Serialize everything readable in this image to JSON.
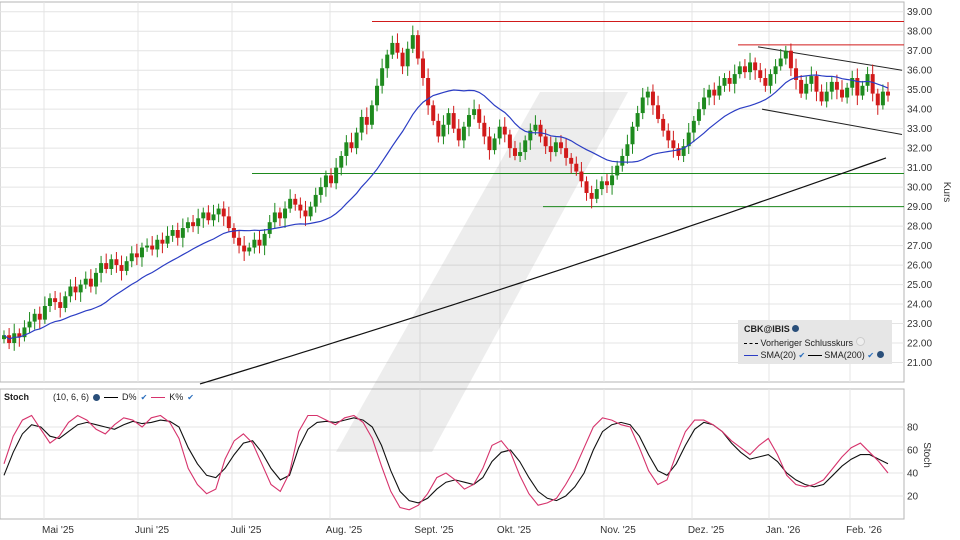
{
  "chart_data": [
    {
      "type": "candlestick",
      "symbol": "CBK@IBIS",
      "ylabel": "Kurs",
      "ylim": [
        20.0,
        39.5
      ],
      "y_ticks": [
        "21.00",
        "22.00",
        "23.00",
        "24.00",
        "25.00",
        "26.00",
        "27.00",
        "28.00",
        "29.00",
        "30.00",
        "31.00",
        "32.00",
        "33.00",
        "34.00",
        "35.00",
        "36.00",
        "37.00",
        "38.00",
        "39.00"
      ],
      "x_ticks": [
        "Mai '25",
        "Juni '25",
        "Juli '25",
        "Aug. '25",
        "Sept. '25",
        "Okt. '25",
        "Nov. '25",
        "Dez. '25",
        "Jan. '26",
        "Feb. '26"
      ],
      "legend": {
        "title": "CBK@IBIS",
        "prev_close": "Vorheriger Schlusskurs",
        "sma20": "SMA(20)",
        "sma200": "SMA(200)"
      },
      "close": [
        22.4,
        22.0,
        22.5,
        22.3,
        22.8,
        23.1,
        23.5,
        23.2,
        23.9,
        24.3,
        24.1,
        23.8,
        24.4,
        24.9,
        24.6,
        25.0,
        25.3,
        24.9,
        25.6,
        26.1,
        25.8,
        26.3,
        26.0,
        25.7,
        26.2,
        26.6,
        26.4,
        26.9,
        27.0,
        26.8,
        27.3,
        27.1,
        27.5,
        27.8,
        27.4,
        27.9,
        28.2,
        28.0,
        28.4,
        28.7,
        28.3,
        28.6,
        28.9,
        28.5,
        27.9,
        27.4,
        27.0,
        26.7,
        26.9,
        27.3,
        27.0,
        27.6,
        28.2,
        28.7,
        28.4,
        28.9,
        29.4,
        29.1,
        28.8,
        28.5,
        29.0,
        29.6,
        30.0,
        30.6,
        30.2,
        31.0,
        31.6,
        32.3,
        32.0,
        32.8,
        33.6,
        33.2,
        34.2,
        35.2,
        36.1,
        36.8,
        37.4,
        36.9,
        36.2,
        37.1,
        37.8,
        36.6,
        35.6,
        34.2,
        33.4,
        32.6,
        33.2,
        33.8,
        33.0,
        32.4,
        33.1,
        33.7,
        34.0,
        33.3,
        32.6,
        31.9,
        32.5,
        33.1,
        32.7,
        32.0,
        31.6,
        31.8,
        32.4,
        32.9,
        33.2,
        32.6,
        32.1,
        31.8,
        32.3,
        32.0,
        31.5,
        31.2,
        30.8,
        30.3,
        29.7,
        29.4,
        29.9,
        30.3,
        30.1,
        30.6,
        31.1,
        31.6,
        32.2,
        33.1,
        33.8,
        34.6,
        34.9,
        34.2,
        33.5,
        32.9,
        32.4,
        32.0,
        31.6,
        32.1,
        32.8,
        33.4,
        34.0,
        34.6,
        35.0,
        34.7,
        35.2,
        35.6,
        35.3,
        35.8,
        36.2,
        35.9,
        36.4,
        36.0,
        35.6,
        35.2,
        35.8,
        36.2,
        36.6,
        37.0,
        36.1,
        35.5,
        34.8,
        35.3,
        35.7,
        34.9,
        34.4,
        34.9,
        35.4,
        35.0,
        34.6,
        35.1,
        35.6,
        34.7,
        35.2,
        35.8,
        34.8,
        34.2,
        34.9,
        34.7
      ],
      "sma20_endpoints": [
        22.1,
        35.2
      ],
      "sma200_range": [
        19.9,
        31.5
      ],
      "levels": {
        "resistance": [
          38.5,
          37.3
        ],
        "support": [
          30.7,
          29.0
        ],
        "channel_upper": [
          37.2,
          36.0
        ],
        "channel_lower": [
          34.0,
          32.7
        ]
      },
      "colors": {
        "up": "#1e8a1e",
        "down": "#d11a1a",
        "sma20": "#2b3dc4",
        "sma200": "#111111",
        "resistance": "#d11a1a",
        "support": "#1e8a1e"
      }
    },
    {
      "type": "line",
      "title": "Stoch",
      "params": "(10, 6, 6)",
      "ylabel": "Stoch",
      "ylim": [
        0,
        100
      ],
      "y_ticks": [
        "20",
        "40",
        "60",
        "80"
      ],
      "series": [
        {
          "name": "D%",
          "color": "#111111",
          "values": [
            38,
            58,
            74,
            82,
            80,
            72,
            70,
            76,
            82,
            84,
            82,
            80,
            78,
            82,
            85,
            83,
            84,
            86,
            85,
            80,
            62,
            48,
            38,
            36,
            44,
            56,
            66,
            68,
            58,
            44,
            34,
            38,
            62,
            78,
            84,
            85,
            84,
            86,
            88,
            86,
            80,
            64,
            42,
            24,
            16,
            14,
            18,
            26,
            32,
            34,
            32,
            30,
            36,
            50,
            58,
            60,
            50,
            36,
            24,
            18,
            16,
            20,
            28,
            40,
            60,
            76,
            82,
            84,
            82,
            72,
            56,
            42,
            38,
            48,
            64,
            78,
            84,
            82,
            76,
            66,
            58,
            52,
            54,
            56,
            50,
            40,
            34,
            30,
            28,
            30,
            38,
            46,
            52,
            56,
            56,
            52,
            48
          ]
        },
        {
          "name": "K%",
          "color": "#d6336c",
          "values": [
            48,
            72,
            86,
            90,
            78,
            66,
            72,
            84,
            90,
            86,
            78,
            74,
            82,
            88,
            86,
            80,
            88,
            90,
            84,
            70,
            44,
            30,
            22,
            26,
            52,
            68,
            74,
            66,
            48,
            30,
            24,
            40,
            76,
            90,
            90,
            86,
            82,
            88,
            90,
            84,
            70,
            46,
            24,
            10,
            8,
            12,
            22,
            36,
            40,
            34,
            26,
            30,
            44,
            64,
            68,
            58,
            38,
            22,
            12,
            14,
            18,
            30,
            44,
            62,
            80,
            88,
            86,
            82,
            80,
            62,
            42,
            30,
            34,
            56,
            76,
            86,
            86,
            82,
            76,
            68,
            62,
            56,
            64,
            70,
            56,
            38,
            30,
            28,
            30,
            34,
            44,
            54,
            62,
            66,
            58,
            50,
            40
          ]
        }
      ]
    }
  ]
}
